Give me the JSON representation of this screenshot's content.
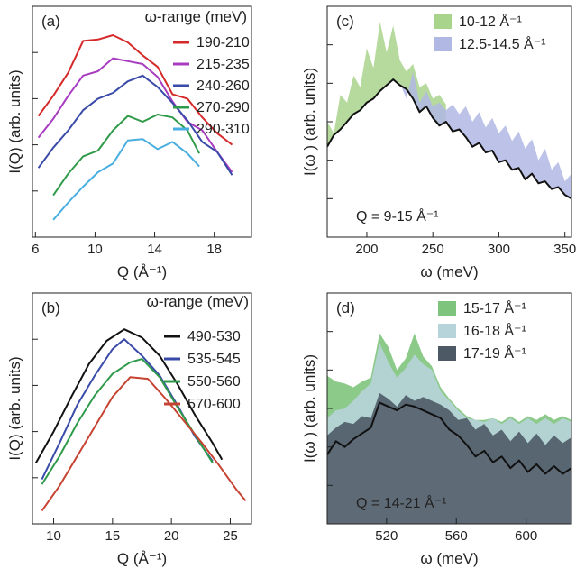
{
  "figure": {
    "panels": [
      "(a)",
      "(b)",
      "(c)",
      "(d)"
    ]
  },
  "chart_data": [
    {
      "id": "a",
      "type": "line",
      "panel_label": "(a)",
      "legend_title": "ω-range (meV)",
      "xlabel": "Q (Å⁻¹)",
      "ylabel": "I(Q) (arb. units)",
      "xlim": [
        5.8,
        20.5
      ],
      "xticks": [
        6,
        10,
        14,
        18
      ],
      "series": [
        {
          "name": "190-210",
          "color": "#d62a2a",
          "x": [
            6.2,
            7.2,
            8.2,
            9.2,
            10.2,
            11.2,
            12.2,
            13.2,
            14.2,
            15.2,
            16.2,
            17.2,
            18.2,
            19.2
          ],
          "y": [
            9.4,
            10.8,
            12.4,
            14.6,
            14.7,
            15.0,
            14.5,
            13.6,
            12.8,
            10.9,
            10.6,
            9.3,
            8.2,
            7.4
          ]
        },
        {
          "name": "215-235",
          "color": "#a83cc0",
          "x": [
            6.2,
            7.2,
            8.2,
            9.2,
            10.2,
            11.2,
            12.2,
            13.2,
            14.2,
            15.2,
            16.2,
            17.2,
            18.2,
            19.2
          ],
          "y": [
            7.9,
            9.2,
            10.8,
            12.2,
            12.5,
            13.4,
            13.2,
            13.0,
            12.1,
            10.4,
            9.0,
            8.4,
            6.9,
            5.5
          ]
        },
        {
          "name": "240-260",
          "color": "#3a4aa8",
          "x": [
            6.2,
            7.2,
            8.2,
            9.2,
            10.2,
            11.2,
            12.2,
            13.2,
            14.2,
            15.2,
            16.2,
            17.2,
            18.2,
            19.2
          ],
          "y": [
            5.8,
            7.2,
            8.4,
            9.8,
            10.6,
            11.0,
            11.8,
            12.2,
            11.4,
            10.3,
            9.1,
            7.6,
            6.9,
            5.3
          ]
        },
        {
          "name": "270-290",
          "color": "#2f9a4a",
          "x": [
            7.2,
            8.2,
            9.2,
            10.2,
            11.2,
            12.2,
            13.2,
            14.2,
            15.2,
            16.2,
            17.0
          ],
          "y": [
            3.9,
            5.4,
            6.6,
            7.0,
            8.4,
            9.4,
            9.0,
            9.5,
            9.3,
            8.4,
            6.8
          ]
        },
        {
          "name": "290-310",
          "color": "#49aee0",
          "x": [
            7.2,
            8.2,
            9.2,
            10.2,
            11.2,
            12.2,
            13.2,
            14.2,
            15.2,
            16.2,
            17.0
          ],
          "y": [
            2.2,
            3.4,
            4.5,
            5.5,
            6.1,
            7.7,
            7.8,
            7.1,
            7.6,
            6.8,
            5.9
          ]
        }
      ]
    },
    {
      "id": "b",
      "type": "line",
      "panel_label": "(b)",
      "legend_title": "ω-range (meV)",
      "xlabel": "Q (Å⁻¹)",
      "ylabel": "I(Q) (arb. units)",
      "xlim": [
        8.2,
        26.8
      ],
      "xticks": [
        10,
        15,
        20,
        25
      ],
      "series": [
        {
          "name": "490-530",
          "color": "#111111",
          "x": [
            8.5,
            10,
            11.5,
            13,
            14.5,
            16,
            17.5,
            19,
            20.5,
            22,
            23.5,
            24.3
          ],
          "y": [
            1.7,
            3.6,
            5.7,
            7.7,
            9.1,
            9.8,
            9.3,
            8.2,
            6.5,
            4.6,
            2.9,
            1.9
          ]
        },
        {
          "name": "535-545",
          "color": "#3a4aa8",
          "x": [
            9,
            10.5,
            12,
            13.5,
            15,
            16,
            17.5,
            19,
            20.5,
            22,
            23.5
          ],
          "y": [
            0.7,
            2.9,
            5.2,
            7.0,
            8.6,
            9.2,
            8.2,
            7.0,
            5.2,
            3.3,
            1.8
          ]
        },
        {
          "name": "550-560",
          "color": "#2f9a4a",
          "x": [
            9,
            10.5,
            12,
            13.5,
            15,
            16.5,
            17.5,
            19,
            20.5,
            22,
            23.5
          ],
          "y": [
            0.4,
            2.1,
            4.1,
            5.8,
            7.1,
            7.8,
            8.0,
            6.9,
            5.1,
            3.4,
            1.7
          ]
        },
        {
          "name": "570-600",
          "color": "#c64331",
          "x": [
            9,
            10.5,
            12,
            13.5,
            15,
            16.5,
            18,
            19.5,
            21,
            22.5,
            24,
            25.5,
            26.3
          ],
          "y": [
            -1.2,
            0.3,
            2.1,
            3.9,
            5.7,
            6.9,
            6.8,
            5.6,
            4.3,
            3.0,
            1.6,
            0.1,
            -0.6
          ]
        }
      ]
    },
    {
      "id": "c",
      "type": "area",
      "panel_label": "(c)",
      "xlabel": "ω (meV)",
      "ylabel": "I(ω ) (arb. units)",
      "annotation": "Q = 9-15 Å⁻¹",
      "xlim": [
        170,
        355
      ],
      "xticks": [
        200,
        250,
        300,
        350
      ],
      "series": [
        {
          "name": "10-12 Å⁻¹",
          "color": "#a9d48c",
          "x": [
            170,
            175,
            180,
            185,
            190,
            195,
            200,
            205,
            210,
            215,
            220,
            225,
            230,
            235,
            240,
            245,
            250,
            255,
            260
          ],
          "y": [
            6.0,
            5.4,
            7.4,
            7.0,
            8.4,
            7.8,
            9.8,
            8.8,
            11.2,
            9.6,
            11.0,
            9.2,
            8.6,
            9.0,
            7.8,
            8.0,
            7.2,
            7.4,
            6.9
          ]
        },
        {
          "name": "12.5-14.5 Å⁻¹",
          "color": "#b2b8e4",
          "x": [
            225,
            230,
            235,
            240,
            245,
            250,
            255,
            260,
            265,
            270,
            275,
            280,
            285,
            290,
            295,
            300,
            305,
            310,
            315,
            320,
            325,
            330,
            335,
            340,
            345,
            350,
            355
          ],
          "y": [
            8.0,
            7.2,
            8.6,
            7.0,
            7.6,
            6.8,
            7.0,
            6.6,
            6.9,
            6.4,
            6.8,
            6.0,
            6.5,
            5.7,
            6.2,
            5.4,
            5.8,
            5.0,
            5.5,
            4.6,
            5.1,
            4.0,
            4.6,
            3.5,
            3.9,
            2.9,
            3.3
          ]
        },
        {
          "name": "",
          "color": "#111111",
          "x": [
            170,
            175,
            180,
            185,
            190,
            195,
            200,
            205,
            210,
            215,
            220,
            225,
            230,
            235,
            240,
            245,
            250,
            255,
            260,
            265,
            270,
            275,
            280,
            285,
            290,
            295,
            300,
            305,
            310,
            315,
            320,
            325,
            330,
            335,
            340,
            345,
            350,
            355
          ],
          "y": [
            4.7,
            5.3,
            5.6,
            6.0,
            6.4,
            6.6,
            7.0,
            7.2,
            7.6,
            7.9,
            8.2,
            7.9,
            7.7,
            7.2,
            6.5,
            6.8,
            6.2,
            5.8,
            6.0,
            5.5,
            5.6,
            5.2,
            4.7,
            4.9,
            4.4,
            4.5,
            3.9,
            4.0,
            3.5,
            3.6,
            3.0,
            3.3,
            2.8,
            2.9,
            2.5,
            2.6,
            2.2,
            2.0
          ]
        }
      ]
    },
    {
      "id": "d",
      "type": "area",
      "panel_label": "(d)",
      "xlabel": "ω (meV)",
      "ylabel": "I(ω ) (arb. units)",
      "annotation": "Q = 14-21 Å⁻¹",
      "xlim": [
        486,
        626
      ],
      "xticks": [
        520,
        560,
        600
      ],
      "series": [
        {
          "name": "15-17 Å⁻¹",
          "color": "#7fc47c",
          "x": [
            486,
            491,
            496,
            501,
            506,
            511,
            516,
            521,
            526,
            531,
            536,
            541,
            546,
            551,
            556,
            561,
            566,
            571,
            576,
            581,
            586,
            591,
            596,
            601,
            606,
            611,
            616,
            621,
            626
          ],
          "y": [
            7.7,
            7.4,
            7.3,
            7.1,
            7.4,
            7.6,
            9.9,
            9.2,
            8.0,
            8.6,
            9.9,
            8.7,
            8.2,
            7.1,
            6.5,
            6.0,
            5.6,
            5.4,
            5.4,
            5.5,
            5.3,
            5.6,
            5.3,
            5.6,
            5.4,
            5.7,
            5.4,
            5.6,
            5.4
          ]
        },
        {
          "name": "16-18 Å⁻¹",
          "color": "#b7d4da",
          "x": [
            486,
            491,
            496,
            501,
            506,
            511,
            516,
            521,
            526,
            531,
            536,
            541,
            546,
            551,
            556,
            561,
            566,
            571,
            576,
            581,
            586,
            591,
            596,
            601,
            606,
            611,
            616,
            621,
            626
          ],
          "y": [
            5.5,
            5.9,
            6.0,
            6.4,
            6.9,
            7.3,
            9.4,
            8.4,
            7.6,
            8.1,
            8.8,
            8.3,
            8.0,
            6.9,
            6.4,
            5.9,
            5.5,
            5.4,
            5.3,
            5.5,
            5.2,
            5.5,
            5.2,
            5.5,
            5.2,
            5.5,
            5.2,
            5.5,
            5.3
          ]
        },
        {
          "name": "17-19 Å⁻¹",
          "color": "#4d5a66",
          "x": [
            486,
            491,
            496,
            501,
            506,
            511,
            516,
            521,
            526,
            531,
            536,
            541,
            546,
            551,
            556,
            561,
            566,
            571,
            576,
            581,
            586,
            591,
            596,
            601,
            606,
            611,
            616,
            621,
            626
          ],
          "y": [
            4.6,
            5.0,
            5.3,
            5.2,
            5.6,
            5.5,
            6.8,
            6.5,
            6.1,
            6.7,
            6.4,
            6.6,
            6.4,
            6.2,
            5.9,
            5.4,
            5.5,
            4.9,
            5.2,
            4.6,
            4.9,
            4.3,
            4.8,
            4.2,
            4.7,
            4.1,
            4.6,
            4.2,
            4.5
          ]
        },
        {
          "name": "",
          "color": "#111111",
          "x": [
            486,
            491,
            496,
            501,
            506,
            511,
            516,
            521,
            526,
            531,
            536,
            541,
            546,
            551,
            556,
            561,
            566,
            571,
            576,
            581,
            586,
            591,
            596,
            601,
            606,
            611,
            616,
            621,
            626
          ],
          "y": [
            3.6,
            4.3,
            4.0,
            4.4,
            4.7,
            5.0,
            6.3,
            6.1,
            5.9,
            6.2,
            6.1,
            5.9,
            5.7,
            5.5,
            4.9,
            4.6,
            4.1,
            3.5,
            3.8,
            3.2,
            3.5,
            2.9,
            3.3,
            2.7,
            3.1,
            2.6,
            3.0,
            2.6,
            2.9
          ]
        }
      ]
    }
  ]
}
